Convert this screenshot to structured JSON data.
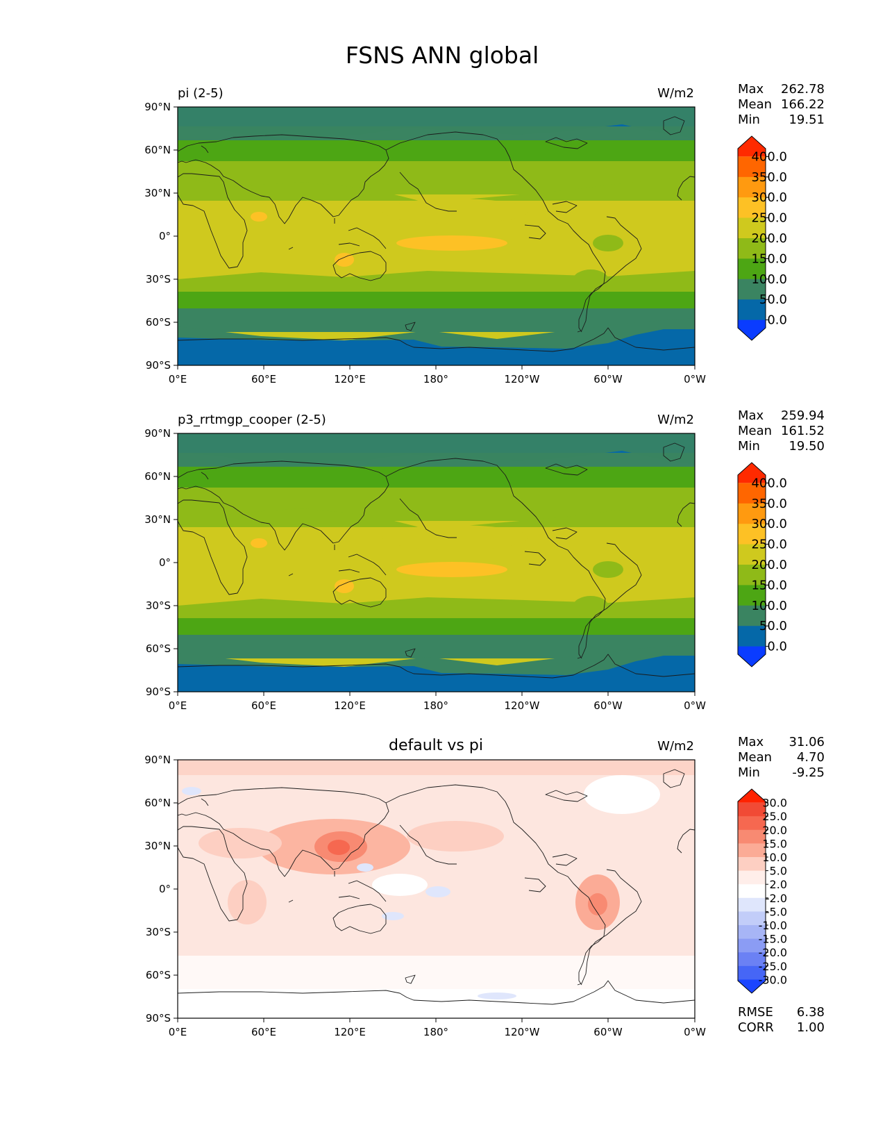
{
  "title": "FSNS ANN global",
  "lat_labels": [
    "90°N",
    "60°N",
    "30°N",
    "0°",
    "30°S",
    "60°S",
    "90°S"
  ],
  "lon_labels": [
    "0°E",
    "60°E",
    "120°E",
    "180°",
    "120°W",
    "60°W",
    "0°W"
  ],
  "panels": [
    {
      "subtitle_left": "pi (2-5)",
      "subtitle_center": "",
      "units": "W/m2",
      "stats": [
        {
          "label": "Max",
          "value": "262.78"
        },
        {
          "label": "Mean",
          "value": "166.22"
        },
        {
          "label": "Min",
          "value": "19.51"
        }
      ],
      "colorbar": {
        "levels": [
          "400.0",
          "350.0",
          "300.0",
          "250.0",
          "200.0",
          "150.0",
          "100.0",
          "50.0",
          "0.0"
        ],
        "colors": [
          "#ff2a00",
          "#ff6600",
          "#ff9a10",
          "#fdc125",
          "#cfc91e",
          "#8fba18",
          "#4da614",
          "#3a8461",
          "#0568a8",
          "#0a3cff"
        ]
      },
      "metrics": []
    },
    {
      "subtitle_left": "p3_rrtmgp_cooper (2-5)",
      "subtitle_center": "",
      "units": "W/m2",
      "stats": [
        {
          "label": "Max",
          "value": "259.94"
        },
        {
          "label": "Mean",
          "value": "161.52"
        },
        {
          "label": "Min",
          "value": "19.50"
        }
      ],
      "colorbar": {
        "levels": [
          "400.0",
          "350.0",
          "300.0",
          "250.0",
          "200.0",
          "150.0",
          "100.0",
          "50.0",
          "0.0"
        ],
        "colors": [
          "#ff2a00",
          "#ff6600",
          "#ff9a10",
          "#fdc125",
          "#cfc91e",
          "#8fba18",
          "#4da614",
          "#3a8461",
          "#0568a8",
          "#0a3cff"
        ]
      },
      "metrics": []
    },
    {
      "subtitle_left": "",
      "subtitle_center": "default vs pi",
      "units": "W/m2",
      "stats": [
        {
          "label": "Max",
          "value": "31.06"
        },
        {
          "label": "Mean",
          "value": "4.70"
        },
        {
          "label": "Min",
          "value": "-9.25"
        }
      ],
      "colorbar": {
        "levels": [
          "30.0",
          "25.0",
          "20.0",
          "15.0",
          "10.0",
          "5.0",
          "2.0",
          "-2.0",
          "-5.0",
          "-10.0",
          "-15.0",
          "-20.0",
          "-25.0",
          "-30.0"
        ],
        "colors": [
          "#ff2200",
          "#f14a35",
          "#f66850",
          "#f88a72",
          "#fbab96",
          "#fdcfc2",
          "#ffeeea",
          "#ffffff",
          "#dfe6fc",
          "#c2cdf9",
          "#a7b5f6",
          "#8b9cf4",
          "#6b81f4",
          "#4666f6",
          "#1b45ff"
        ]
      },
      "metrics": [
        {
          "label": "RMSE",
          "value": "6.38"
        },
        {
          "label": "CORR",
          "value": "1.00"
        }
      ]
    }
  ]
}
